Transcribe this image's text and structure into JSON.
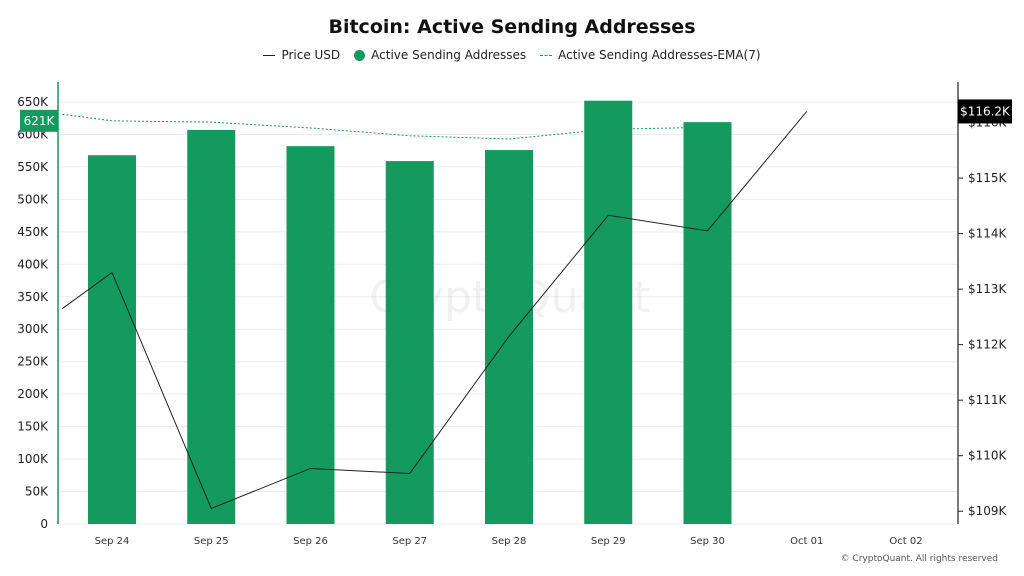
{
  "chart_data": {
    "type": "bar",
    "title": "Bitcoin: Active Sending Addresses",
    "categories": [
      "Sep 24",
      "Sep 25",
      "Sep 26",
      "Sep 27",
      "Sep 28",
      "Sep 29",
      "Sep 30",
      "Oct 01",
      "Oct 02"
    ],
    "series": [
      {
        "name": "Active Sending Addresses",
        "kind": "bar",
        "axis": "left",
        "color": "#14995e",
        "values": [
          568000,
          607000,
          582000,
          559000,
          576000,
          652000,
          619000,
          null,
          null
        ]
      },
      {
        "name": "Active Sending Addresses-EMA(7)",
        "kind": "line-dashed",
        "axis": "left",
        "color": "#14995e",
        "x": [
          "Sep 23.5",
          "Sep 24",
          "Sep 25",
          "Sep 26",
          "Sep 27",
          "Sep 28",
          "Sep 29",
          "Sep 30"
        ],
        "values": [
          631000,
          621000,
          619000,
          610000,
          598000,
          593000,
          608000,
          611000
        ]
      },
      {
        "name": "Price USD",
        "kind": "line",
        "axis": "right",
        "color": "#222222",
        "x": [
          "Sep 23.5",
          "Sep 24",
          "Sep 25",
          "Sep 26",
          "Sep 27",
          "Sep 28",
          "Sep 29",
          "Sep 30",
          "Oct 01"
        ],
        "values": [
          112650,
          113300,
          109050,
          109770,
          109680,
          112150,
          114330,
          114050,
          116200
        ]
      }
    ],
    "y_left": {
      "ticks": [
        0,
        50000,
        100000,
        150000,
        200000,
        250000,
        300000,
        350000,
        400000,
        450000,
        500000,
        550000,
        600000,
        650000
      ],
      "tick_labels": [
        "0",
        "50K",
        "100K",
        "150K",
        "200K",
        "250K",
        "300K",
        "350K",
        "400K",
        "450K",
        "500K",
        "550K",
        "600K",
        "650K"
      ],
      "range": [
        0,
        650000
      ]
    },
    "y_right": {
      "ticks": [
        109000,
        110000,
        111000,
        112000,
        113000,
        114000,
        115000,
        116000
      ],
      "tick_labels": [
        "$109K",
        "$110K",
        "$111K",
        "$112K",
        "$113K",
        "$114K",
        "$115K",
        "$116K"
      ],
      "range": [
        108770,
        116370
      ]
    },
    "left_flag": {
      "label": "621K",
      "value": 621000,
      "color": "#14995e"
    },
    "right_flag": {
      "label": "$116.2K",
      "value": 116200,
      "color": "#000000"
    },
    "grid": true,
    "legend_position": "top-center",
    "watermark": "CryptoQuant"
  },
  "legend": {
    "price": "Price USD",
    "asa": "Active Sending Addresses",
    "ema": "Active Sending Addresses-EMA(7)"
  },
  "credit": "© CryptoQuant. All rights reserved"
}
